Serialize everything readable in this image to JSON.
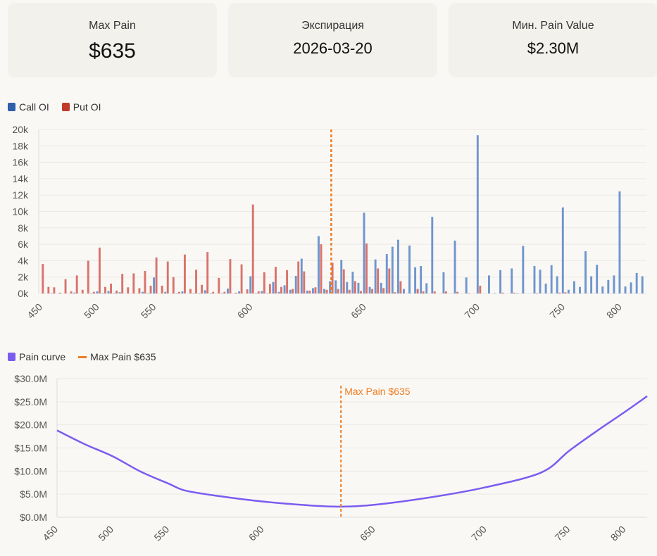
{
  "cards": [
    {
      "label": "Max Pain",
      "value": "$635"
    },
    {
      "label": "Экспирация",
      "value": "2026-03-20"
    },
    {
      "label": "Мин. Pain Value",
      "value": "$2.30M"
    }
  ],
  "colors": {
    "call": "#6f95cd",
    "put": "#d8736c",
    "call_legend": "#2f5faa",
    "put_legend": "#c0392b",
    "pain": "#7b5cf0",
    "maxpain": "#ef7d22",
    "grid": "#ebe9e4",
    "tick": "#555555"
  },
  "chart_data": [
    {
      "type": "bar",
      "legend": [
        {
          "name": "Call OI"
        },
        {
          "name": "Put OI"
        }
      ],
      "legend_position": "top-left",
      "value_unit": "thousands of contracts",
      "categories": [
        450,
        455,
        460,
        465,
        470,
        475,
        480,
        485,
        490,
        495,
        500,
        505,
        510,
        515,
        520,
        525,
        530,
        535,
        540,
        545,
        550,
        555,
        560,
        565,
        567.5,
        570,
        572.5,
        575,
        577.5,
        580,
        582.5,
        585,
        587.5,
        590,
        592.5,
        595,
        597.5,
        600,
        602.5,
        605,
        607.5,
        610,
        612.5,
        615,
        617.5,
        620,
        622.5,
        625,
        627.5,
        630,
        632.5,
        635,
        637.5,
        640,
        642.5,
        645,
        647.5,
        650,
        652.5,
        655,
        657.5,
        660,
        662.5,
        665,
        667.5,
        670,
        672.5,
        675,
        677.5,
        680,
        682.5,
        685,
        687.5,
        690,
        692.5,
        695,
        697.5,
        700,
        702.5,
        705,
        707.5,
        710,
        712.5,
        715,
        717.5,
        720,
        722.5,
        725,
        730,
        735,
        740,
        745,
        750,
        755,
        760,
        765,
        770,
        775,
        780,
        785,
        790,
        795,
        800,
        805,
        810,
        815,
        820
      ],
      "series": [
        {
          "name": "Call OI",
          "values": [
            0,
            0,
            0.05,
            0,
            0,
            0,
            0.1,
            0,
            0,
            0.05,
            0.25,
            0.05,
            0.3,
            0.05,
            0.15,
            0,
            0,
            0,
            0.2,
            0.05,
            1.95,
            0,
            0.2,
            0,
            0.05,
            0.25,
            0,
            0.05,
            0.05,
            0.4,
            0.05,
            0,
            0.05,
            0.6,
            0,
            0.25,
            0,
            2.1,
            0.05,
            0.3,
            0.05,
            1.4,
            0.2,
            1.0,
            0.45,
            2.15,
            4.25,
            0.35,
            0.65,
            7.0,
            0.55,
            1.5,
            1.6,
            4.1,
            1.4,
            2.65,
            1.3,
            9.85,
            0.8,
            4.15,
            1.3,
            4.8,
            5.7,
            6.55,
            0.55,
            5.85,
            3.2,
            3.35,
            1.25,
            9.35,
            0,
            2.6,
            0,
            6.45,
            0,
            1.95,
            0,
            19.3,
            0,
            2.2,
            0.05,
            2.85,
            0,
            3.05,
            0.05,
            5.8,
            0,
            3.35,
            2.9,
            1.2,
            3.45,
            2.1,
            10.5,
            0.45,
            1.5,
            0.8,
            5.15,
            2.1,
            3.5,
            0.85,
            1.65,
            2.2,
            12.45,
            0.85,
            1.35,
            2.5,
            2.1
          ]
        },
        {
          "name": "Put OI",
          "values": [
            3.6,
            0.8,
            0.75,
            0.1,
            1.75,
            0.25,
            2.2,
            0.45,
            4.0,
            0.2,
            5.6,
            0.8,
            1.2,
            0.35,
            2.4,
            0.75,
            2.45,
            0.65,
            2.75,
            0.95,
            4.4,
            0.95,
            3.9,
            2.0,
            0.2,
            4.75,
            0.55,
            2.9,
            1.05,
            5.05,
            0.2,
            1.9,
            0.2,
            4.2,
            0.1,
            3.55,
            0.5,
            10.85,
            0.25,
            2.6,
            1.15,
            3.25,
            0.8,
            2.85,
            0.55,
            3.9,
            2.7,
            0.35,
            0.75,
            6.0,
            0.45,
            3.75,
            0.55,
            2.95,
            0.45,
            1.5,
            0.3,
            6.1,
            0.55,
            3.05,
            0.65,
            3.05,
            0.15,
            1.5,
            0,
            0,
            0.55,
            0.25,
            0,
            0.25,
            0,
            0.25,
            0,
            0.2,
            0,
            0.05,
            0,
            0.95,
            0,
            0,
            0,
            0.1,
            0,
            0.1,
            0,
            0,
            0,
            0.05,
            0,
            0,
            0,
            0.1,
            0.15,
            0,
            0,
            0,
            0,
            0,
            0,
            0,
            0,
            0,
            0,
            0,
            0,
            0,
            0
          ]
        }
      ],
      "ylim": [
        0,
        20
      ],
      "yticks": [
        "0k",
        "2k",
        "4k",
        "6k",
        "8k",
        "10k",
        "12k",
        "14k",
        "16k",
        "18k",
        "20k"
      ],
      "xticks": [
        450,
        500,
        550,
        600,
        650,
        700,
        750,
        800
      ],
      "marker": {
        "strike": 635
      },
      "grid": true
    },
    {
      "type": "line",
      "legend": [
        {
          "name": "Pain curve"
        },
        {
          "name": "Max Pain $635"
        }
      ],
      "legend_position": "top-left",
      "value_unit": "$M",
      "points": [
        [
          450,
          18.8
        ],
        [
          475,
          15.8
        ],
        [
          500,
          13.2
        ],
        [
          525,
          9.9
        ],
        [
          550,
          7.3
        ],
        [
          565,
          5.8
        ],
        [
          580,
          4.6
        ],
        [
          600,
          3.4
        ],
        [
          620,
          2.6
        ],
        [
          635,
          2.3
        ],
        [
          650,
          2.7
        ],
        [
          675,
          4.3
        ],
        [
          700,
          6.5
        ],
        [
          725,
          9.7
        ],
        [
          750,
          14.4
        ],
        [
          775,
          18.7
        ],
        [
          800,
          22.8
        ],
        [
          820,
          26.2
        ]
      ],
      "ylim": [
        0,
        30
      ],
      "yticks": [
        "$0.0M",
        "$5.0M",
        "$10.0M",
        "$15.0M",
        "$20.0M",
        "$25.0M",
        "$30.0M"
      ],
      "xticks": [
        450,
        500,
        550,
        600,
        650,
        700,
        750,
        800
      ],
      "annotation": "Max Pain $635",
      "marker": {
        "strike": 635
      },
      "grid": true
    }
  ]
}
